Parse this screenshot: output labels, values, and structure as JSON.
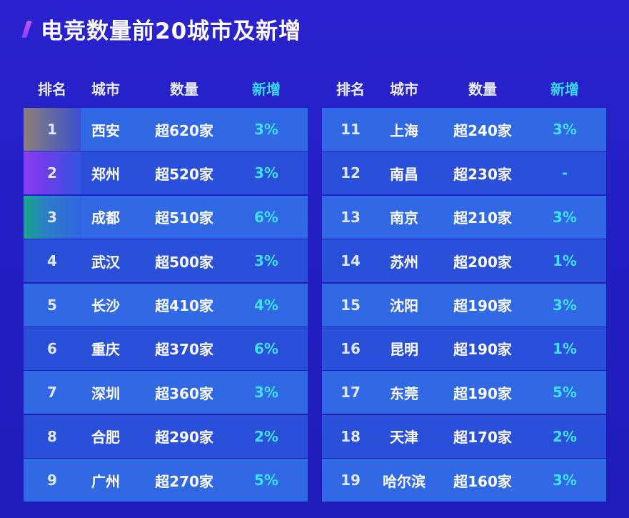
{
  "title": "电竞数量前20城市及新增",
  "headers": {
    "rank": "排名",
    "city": "城市",
    "count": "数量",
    "new": "新增"
  },
  "colors": {
    "background": "#2320c4",
    "row_light": "#3168e4",
    "row_dark": "#2a4fd8",
    "accent_new": "#3fe0f5",
    "title_mark": "#b050ff"
  },
  "chart_data": {
    "type": "table",
    "title": "电竞数量前20城市及新增",
    "columns": [
      "排名",
      "城市",
      "数量",
      "新增"
    ],
    "rows": [
      {
        "rank": "1",
        "city": "西安",
        "count": "超620家",
        "new": "3%"
      },
      {
        "rank": "2",
        "city": "郑州",
        "count": "超520家",
        "new": "3%"
      },
      {
        "rank": "3",
        "city": "成都",
        "count": "超510家",
        "new": "6%"
      },
      {
        "rank": "4",
        "city": "武汉",
        "count": "超500家",
        "new": "3%"
      },
      {
        "rank": "5",
        "city": "长沙",
        "count": "超410家",
        "new": "4%"
      },
      {
        "rank": "6",
        "city": "重庆",
        "count": "超370家",
        "new": "6%"
      },
      {
        "rank": "7",
        "city": "深圳",
        "count": "超360家",
        "new": "3%"
      },
      {
        "rank": "8",
        "city": "合肥",
        "count": "超290家",
        "new": "2%"
      },
      {
        "rank": "9",
        "city": "广州",
        "count": "超270家",
        "new": "5%"
      },
      {
        "rank": "11",
        "city": "上海",
        "count": "超240家",
        "new": "3%"
      },
      {
        "rank": "12",
        "city": "南昌",
        "count": "超230家",
        "new": "-"
      },
      {
        "rank": "13",
        "city": "南京",
        "count": "超210家",
        "new": "3%"
      },
      {
        "rank": "14",
        "city": "苏州",
        "count": "超200家",
        "new": "1%"
      },
      {
        "rank": "15",
        "city": "沈阳",
        "count": "超190家",
        "new": "3%"
      },
      {
        "rank": "16",
        "city": "昆明",
        "count": "超190家",
        "new": "1%"
      },
      {
        "rank": "17",
        "city": "东莞",
        "count": "超190家",
        "new": "5%"
      },
      {
        "rank": "18",
        "city": "天津",
        "count": "超170家",
        "new": "2%"
      },
      {
        "rank": "19",
        "city": "哈尔滨",
        "count": "超160家",
        "new": "3%"
      }
    ]
  }
}
